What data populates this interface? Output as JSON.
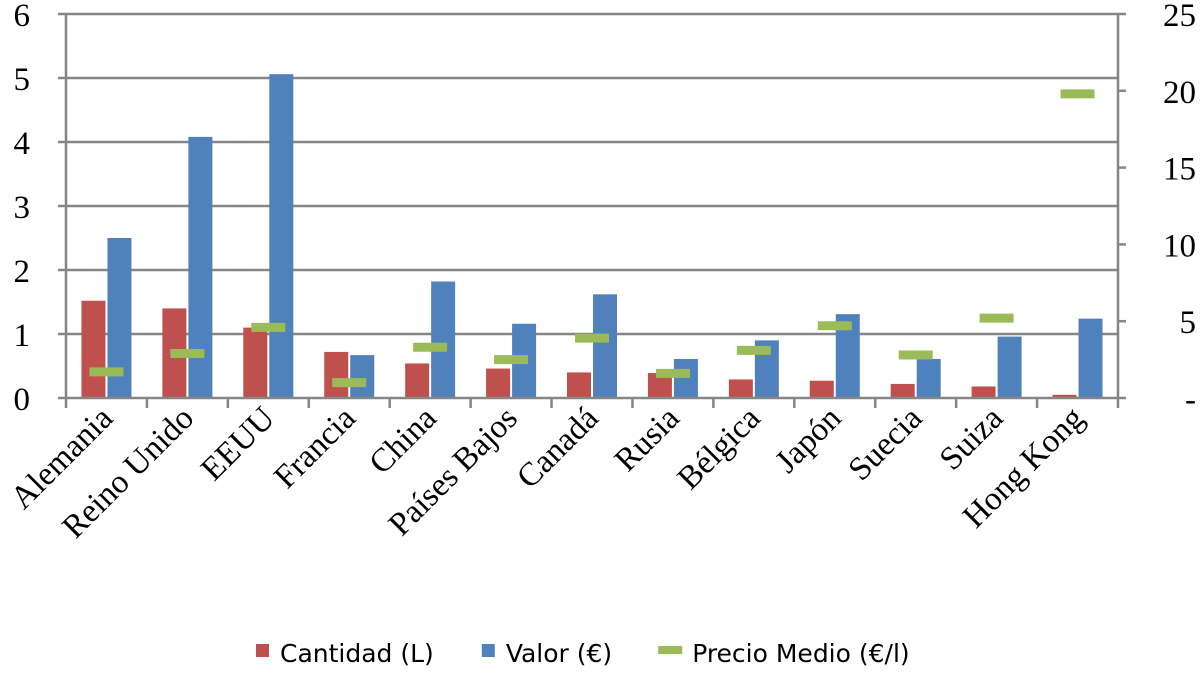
{
  "chart_data": {
    "type": "bar",
    "categories": [
      "Alemania",
      "Reino Unido",
      "EEUU",
      "Francia",
      "China",
      "Países Bajos",
      "Canadá",
      "Rusia",
      "Bélgica",
      "Japón",
      "Suecia",
      "Suiza",
      "Hong Kong"
    ],
    "series": [
      {
        "name": "Cantidad (L)",
        "axis": "left",
        "mark": "bar",
        "color": "#C0504D",
        "values": [
          1.52,
          1.4,
          1.1,
          0.72,
          0.54,
          0.46,
          0.4,
          0.39,
          0.29,
          0.27,
          0.22,
          0.18,
          0.05
        ]
      },
      {
        "name": "Valor (€)",
        "axis": "left",
        "mark": "bar",
        "color": "#4F81BD",
        "values": [
          2.5,
          4.08,
          5.06,
          0.67,
          1.82,
          1.16,
          1.62,
          0.61,
          0.9,
          1.31,
          0.61,
          0.96,
          1.24
        ]
      },
      {
        "name": "Precio Medio (€/l)",
        "axis": "right",
        "mark": "dash",
        "color": "#9BBB59",
        "values": [
          1.7,
          2.9,
          4.6,
          1.0,
          3.3,
          2.5,
          3.9,
          1.6,
          3.1,
          4.7,
          2.8,
          5.2,
          19.8
        ]
      }
    ],
    "y_left": {
      "ylim": [
        0,
        6
      ],
      "ticks": [
        "0",
        "1",
        "2",
        "3",
        "4",
        "5",
        "6"
      ]
    },
    "y_right": {
      "ylim": [
        0,
        25
      ],
      "ticks": [
        "-",
        "5",
        "10",
        "15",
        "20",
        "25"
      ]
    },
    "grid": true,
    "legend": {
      "position": "bottom"
    }
  }
}
